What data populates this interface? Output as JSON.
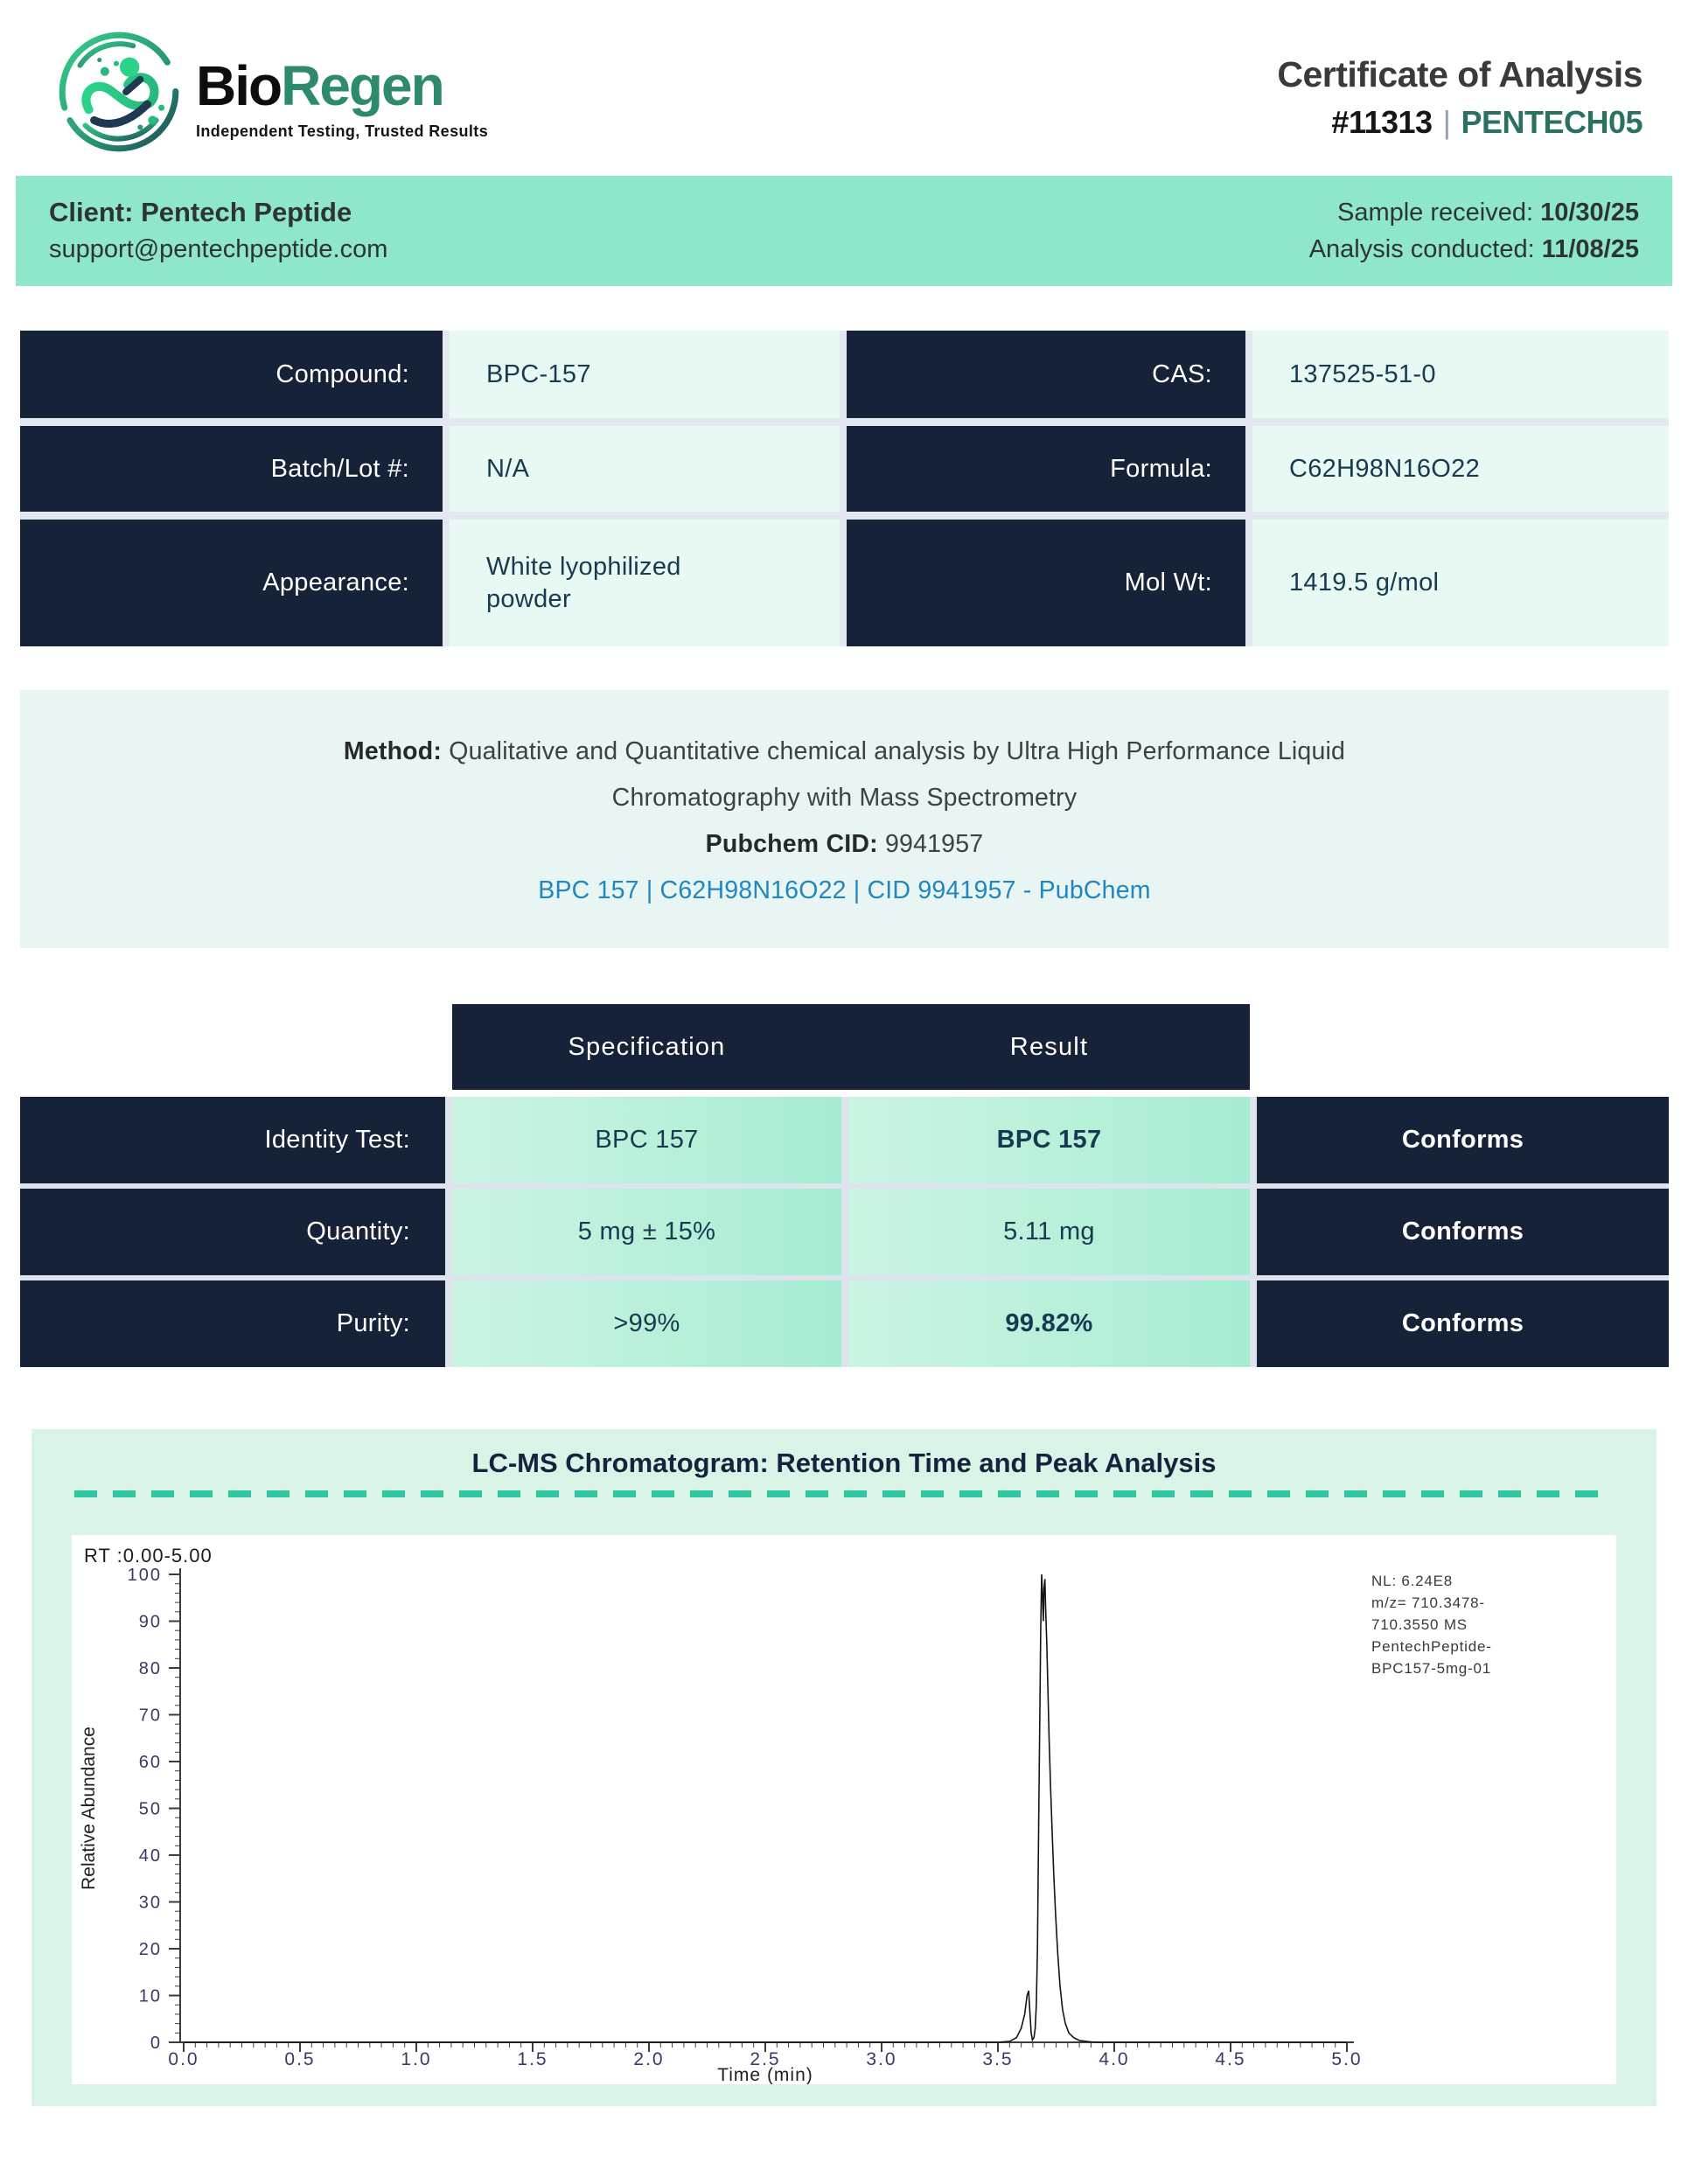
{
  "header": {
    "logo": {
      "brand_bio": "Bio",
      "brand_regen": "Regen",
      "tagline": "Independent Testing, Trusted Results"
    },
    "title": "Certificate of Analysis",
    "report_number": "#11313",
    "separator": "|",
    "report_code": "PENTECH05"
  },
  "client_band": {
    "client_label": "Client:",
    "client_name": "Pentech Peptide",
    "client_email": "support@pentechpeptide.com",
    "sample_received_label": "Sample received:",
    "sample_received_date": "10/30/25",
    "analysis_conducted_label": "Analysis conducted:",
    "analysis_conducted_date": "11/08/25"
  },
  "compound_info": {
    "rows": [
      {
        "left_label": "Compound:",
        "left_value": "BPC-157",
        "right_label": "CAS:",
        "right_value": "137525-51-0"
      },
      {
        "left_label": "Batch/Lot #:",
        "left_value": "N/A",
        "right_label": "Formula:",
        "right_value": "C62H98N16O22"
      },
      {
        "left_label": "Appearance:",
        "left_value": "White lyophilized powder",
        "right_label": "Mol Wt:",
        "right_value": "1419.5 g/mol"
      }
    ]
  },
  "method": {
    "label": "Method:",
    "text": " Qualitative and Quantitative chemical analysis by Ultra High Performance Liquid\nChromatography with Mass Spectrometry",
    "pubchem_label": "Pubchem CID:",
    "pubchem_cid": " 9941957",
    "link_text": "BPC 157 | C62H98N16O22 | CID 9941957 - PubChem"
  },
  "results_table": {
    "headers": {
      "specification": "Specification",
      "result": "Result"
    },
    "rows": [
      {
        "label": "Identity Test:",
        "specification": "BPC 157",
        "result": "BPC 157",
        "status": "Conforms"
      },
      {
        "label": "Quantity:",
        "specification": "5 mg ± 15%",
        "result": "5.11 mg",
        "status": "Conforms"
      },
      {
        "label": "Purity:",
        "specification": ">99%",
        "result": "99.82%",
        "status": "Conforms"
      }
    ]
  },
  "chromatogram": {
    "section_title": "LC-MS Chromatogram: Retention Time and Peak Analysis",
    "rt_range_label": "RT :0.00-5.00",
    "annotation_lines": [
      "NL: 6.24E8",
      "m/z= 710.3478-",
      "710.3550 MS",
      "PentechPeptide-",
      "BPC157-5mg-01"
    ]
  },
  "chart_data": {
    "type": "line",
    "title": "LC-MS Chromatogram: Retention Time and Peak Analysis",
    "xlabel": "Time (min)",
    "ylabel": "Relative Abundance",
    "xlim": [
      0,
      5
    ],
    "ylim": [
      0,
      100
    ],
    "x_ticks": [
      0.0,
      0.5,
      1.0,
      1.5,
      2.0,
      2.5,
      3.0,
      3.5,
      4.0,
      4.5,
      5.0
    ],
    "y_ticks": [
      0,
      10,
      20,
      30,
      40,
      50,
      60,
      70,
      80,
      90,
      100
    ],
    "grid": false,
    "annotation": "NL: 6.24E8  m/z= 710.3478-710.3550 MS  PentechPeptide-BPC157-5mg-01",
    "peak": {
      "retention_time": 3.7,
      "max_abundance": 100,
      "minor_peak_time": 3.63,
      "minor_peak_abundance": 11
    },
    "series": [
      {
        "name": "PentechPeptide-BPC157-5mg-01",
        "points": [
          [
            0.0,
            0
          ],
          [
            0.5,
            0
          ],
          [
            1.0,
            0
          ],
          [
            1.5,
            0
          ],
          [
            2.0,
            0
          ],
          [
            2.5,
            0
          ],
          [
            3.0,
            0
          ],
          [
            3.4,
            0
          ],
          [
            3.5,
            0
          ],
          [
            3.55,
            0.2
          ],
          [
            3.58,
            1
          ],
          [
            3.6,
            3
          ],
          [
            3.615,
            6
          ],
          [
            3.625,
            10
          ],
          [
            3.632,
            11
          ],
          [
            3.638,
            6
          ],
          [
            3.643,
            2
          ],
          [
            3.648,
            0.5
          ],
          [
            3.655,
            1
          ],
          [
            3.66,
            3
          ],
          [
            3.665,
            8
          ],
          [
            3.67,
            20
          ],
          [
            3.675,
            45
          ],
          [
            3.68,
            70
          ],
          [
            3.684,
            88
          ],
          [
            3.688,
            100
          ],
          [
            3.692,
            95
          ],
          [
            3.695,
            90
          ],
          [
            3.698,
            97
          ],
          [
            3.702,
            99
          ],
          [
            3.705,
            93
          ],
          [
            3.71,
            85
          ],
          [
            3.715,
            75
          ],
          [
            3.72,
            65
          ],
          [
            3.726,
            55
          ],
          [
            3.733,
            45
          ],
          [
            3.74,
            36
          ],
          [
            3.748,
            27
          ],
          [
            3.757,
            19
          ],
          [
            3.767,
            12
          ],
          [
            3.778,
            7
          ],
          [
            3.79,
            4
          ],
          [
            3.805,
            2
          ],
          [
            3.825,
            1
          ],
          [
            3.85,
            0.4
          ],
          [
            3.9,
            0.1
          ],
          [
            3.95,
            0
          ],
          [
            4.0,
            0
          ],
          [
            4.5,
            0
          ],
          [
            5.0,
            0
          ]
        ]
      }
    ]
  },
  "colors": {
    "navy": "#152238",
    "mint_band": "#8ee7cb",
    "value_cell_mint": "#e8f9f3",
    "method_panel": "#e8f5f3",
    "chromatogram_panel": "#daf3e7",
    "gradient_cell_left": "#ccf4e3",
    "gradient_cell_right": "#a7edd1",
    "teal_accent": "#2a7164",
    "link_blue": "#2187c0",
    "dash_teal": "#2fc7a0",
    "trace_black": "#141414"
  }
}
